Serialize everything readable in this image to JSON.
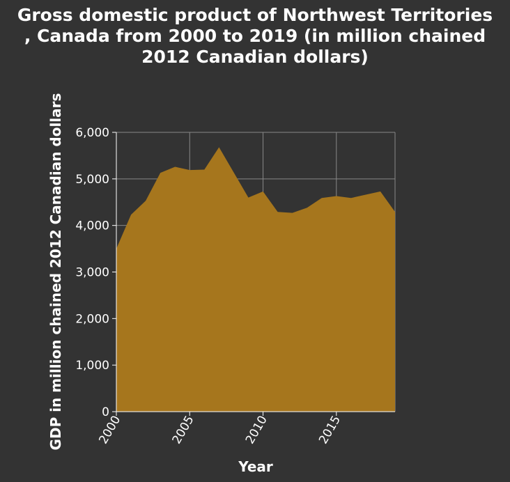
{
  "chart_data": {
    "type": "area",
    "title_lines": [
      "Gross domestic product of Northwest Territories",
      ", Canada from 2000 to 2019 (in million chained",
      "2012 Canadian dollars)"
    ],
    "xlabel": "Year",
    "ylabel": "GDP in million chained 2012 Canadian dollars",
    "xlim": [
      2000,
      2019
    ],
    "ylim": [
      0,
      6000
    ],
    "x_ticks": [
      2000,
      2005,
      2010,
      2015
    ],
    "x_tick_labels": [
      "2000",
      "2005",
      "2010",
      "2015"
    ],
    "y_ticks": [
      0,
      1000,
      2000,
      3000,
      4000,
      5000,
      6000
    ],
    "y_tick_labels": [
      "0",
      "1,000",
      "2,000",
      "3,000",
      "4,000",
      "5,000",
      "6,000"
    ],
    "grid": true,
    "area_color": "#a6761d",
    "background_color": "#333333",
    "grid_color": "#888888",
    "series": [
      {
        "x": [
          2000,
          2001,
          2002,
          2003,
          2004,
          2005,
          2006,
          2007,
          2008,
          2009,
          2010,
          2011,
          2012,
          2013,
          2014,
          2015,
          2016,
          2017,
          2018,
          2019
        ],
        "values": [
          3500,
          4230,
          4530,
          5130,
          5260,
          5190,
          5200,
          5680,
          5140,
          4600,
          4730,
          4290,
          4270,
          4380,
          4590,
          4630,
          4590,
          4660,
          4730,
          4290
        ]
      }
    ]
  }
}
